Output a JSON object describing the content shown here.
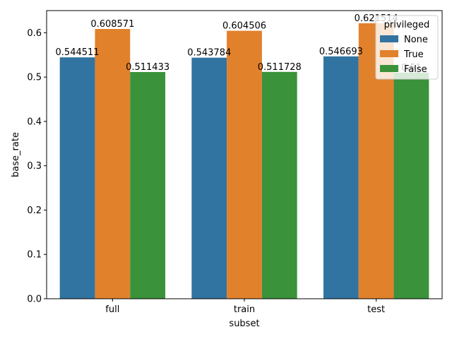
{
  "chart_data": {
    "type": "bar",
    "title": "",
    "xlabel": "subset",
    "ylabel": "base_rate",
    "categories": [
      "full",
      "train",
      "test"
    ],
    "series": [
      {
        "name": "None",
        "color": "#3274a1",
        "values": [
          0.544511,
          0.543784,
          0.546693
        ],
        "labels": [
          "0.544511",
          "0.543784",
          "0.546693"
        ]
      },
      {
        "name": "True",
        "color": "#e1812c",
        "values": [
          0.608571,
          0.604506,
          0.621514
        ],
        "labels": [
          "0.608571",
          "0.604506",
          "0.621514"
        ]
      },
      {
        "name": "False",
        "color": "#3a923a",
        "values": [
          0.511433,
          0.511728,
          0.51
        ],
        "labels": [
          "0.511433",
          "0.511728",
          "0.51"
        ]
      }
    ],
    "ylim": [
      0,
      0.65
    ],
    "yticks": [
      0.0,
      0.1,
      0.2,
      0.3,
      0.4,
      0.5,
      0.6
    ],
    "ytick_labels": [
      "0.0",
      "0.1",
      "0.2",
      "0.3",
      "0.4",
      "0.5",
      "0.6"
    ],
    "legend": {
      "title": "privileged",
      "position": "top-right"
    },
    "grid": false
  }
}
